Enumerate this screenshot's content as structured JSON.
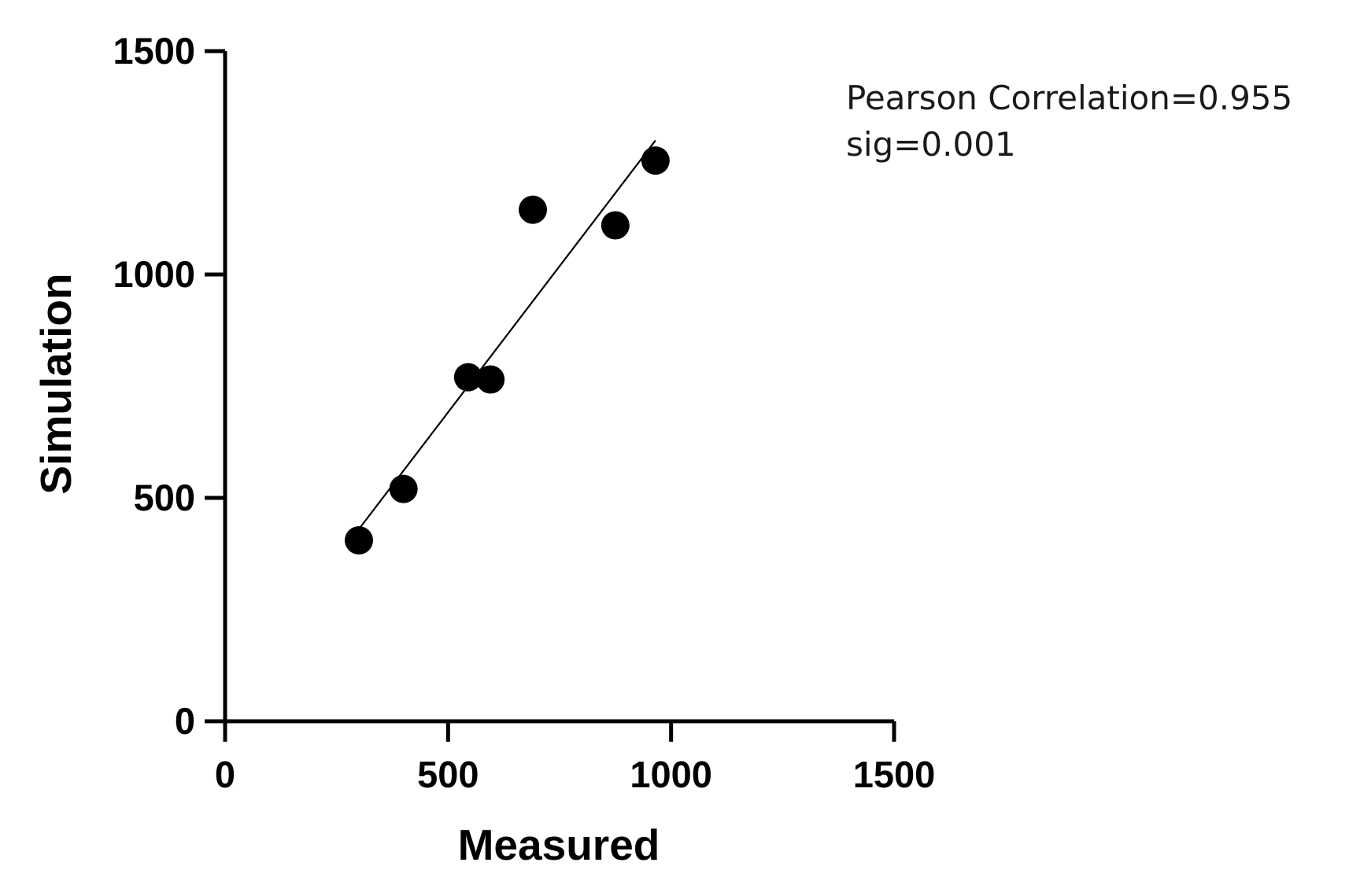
{
  "chart_data": {
    "type": "scatter",
    "xlabel": "Measured",
    "ylabel": "Simulation",
    "xlim": [
      0,
      1500
    ],
    "ylim": [
      0,
      1500
    ],
    "xticks": [
      "0",
      "500",
      "1000",
      "1500"
    ],
    "yticks": [
      "0",
      "500",
      "1000",
      "1500"
    ],
    "grid": false,
    "points": [
      {
        "x": 300,
        "y": 405
      },
      {
        "x": 400,
        "y": 520
      },
      {
        "x": 545,
        "y": 770
      },
      {
        "x": 595,
        "y": 765
      },
      {
        "x": 690,
        "y": 1145
      },
      {
        "x": 875,
        "y": 1110
      },
      {
        "x": 965,
        "y": 1255
      }
    ],
    "fit_line": {
      "x": [
        300,
        965
      ],
      "y": [
        430,
        1300
      ]
    },
    "annotations": [
      "Pearson Correlation=0.955",
      "sig=0.001"
    ]
  }
}
